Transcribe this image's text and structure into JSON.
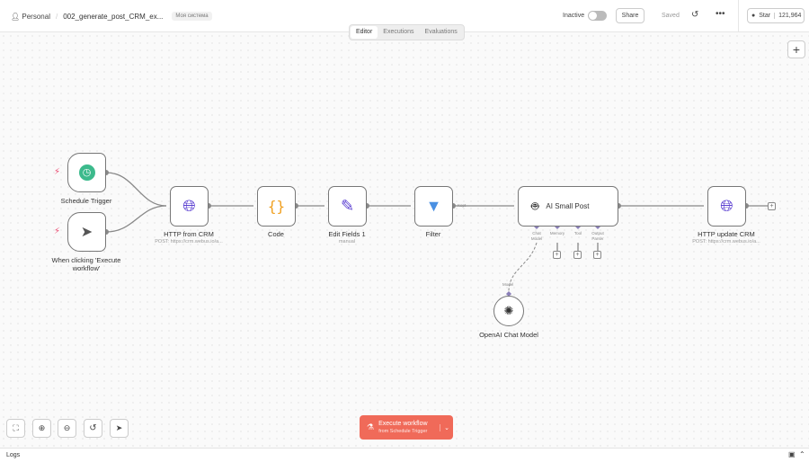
{
  "header": {
    "project": "Personal",
    "workflow": "002_generate_post_CRM_ex...",
    "tag": "Моя система",
    "status": "Inactive",
    "share": "Share",
    "saved": "Saved",
    "star": "Star",
    "stars": "121,964"
  },
  "tabs": [
    {
      "label": "Editor",
      "active": true
    },
    {
      "label": "Executions"
    },
    {
      "label": "Evaluations"
    }
  ],
  "nodes": {
    "schedule": {
      "label": "Schedule Trigger"
    },
    "manual": {
      "label": "When clicking 'Execute workflow'"
    },
    "http_from": {
      "label": "HTTP from CRM",
      "sub": "POST: https://crm.webus.io/a..."
    },
    "code": {
      "label": "Code"
    },
    "edit": {
      "label": "Edit Fields 1",
      "sub": "manual"
    },
    "filter": {
      "label": "Filter",
      "out": "Kept"
    },
    "ai": {
      "label": "AI Small Post",
      "ports": [
        "Chat Model",
        "Memory",
        "Tool",
        "Output Parser"
      ]
    },
    "http_update": {
      "label": "HTTP update CRM",
      "sub": "POST: https://crm.webus.io/a..."
    },
    "openai": {
      "label": "OpenAI Chat Model",
      "port": "Model"
    }
  },
  "execute": {
    "label": "Execute workflow",
    "sub": "from Schedule Trigger"
  },
  "footer": {
    "logs": "Logs"
  },
  "colors": {
    "accent": "#ea4b71",
    "execute": "#f06a59",
    "ai_port": "#8a7fb8"
  }
}
